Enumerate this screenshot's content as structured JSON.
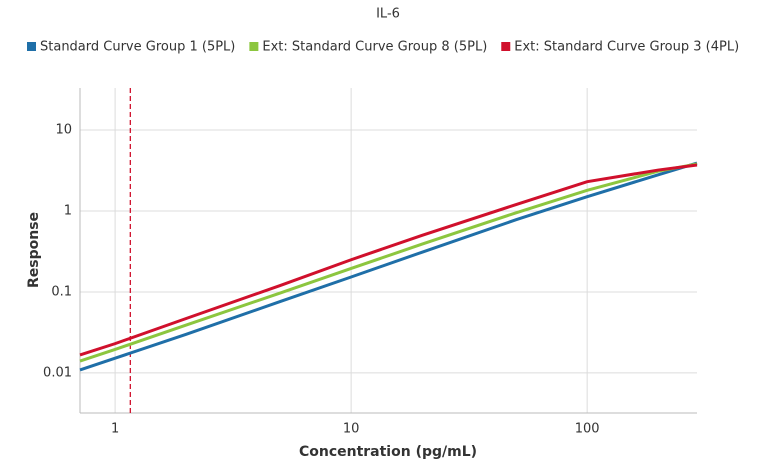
{
  "chart_data": {
    "type": "line",
    "title": "IL-6",
    "x_label": "Concentration (pg/mL)",
    "y_label": "Response",
    "x": [
      0.71,
      1,
      2,
      5,
      10,
      20,
      50,
      100,
      200,
      292
    ],
    "series": [
      {
        "name": "Standard Curve Group 1 (5PL)",
        "color": "#1f6fa8",
        "values": [
          0.0109,
          0.0152,
          0.03,
          0.076,
          0.153,
          0.31,
          0.78,
          1.5,
          2.8,
          3.9
        ]
      },
      {
        "name": "Ext: Standard Curve Group 8 (5PL)",
        "color": "#8cc63f",
        "values": [
          0.014,
          0.0195,
          0.039,
          0.097,
          0.195,
          0.39,
          0.95,
          1.8,
          3.1,
          3.8
        ]
      },
      {
        "name": "Ext: Standard Curve Group 3 (4PL)",
        "color": "#d0102c",
        "values": [
          0.0167,
          0.023,
          0.047,
          0.12,
          0.25,
          0.5,
          1.2,
          2.3,
          3.2,
          3.7
        ]
      }
    ],
    "reference_x": 1.16,
    "reference_color": "#d0102c",
    "xlim": [
      0.71,
      292
    ],
    "ylim": [
      0.0032,
      33
    ],
    "xticks": [
      1,
      10,
      100
    ],
    "yticks": [
      0.01,
      0.1,
      1,
      10
    ],
    "x_log": true,
    "y_log": true,
    "grid": true
  }
}
